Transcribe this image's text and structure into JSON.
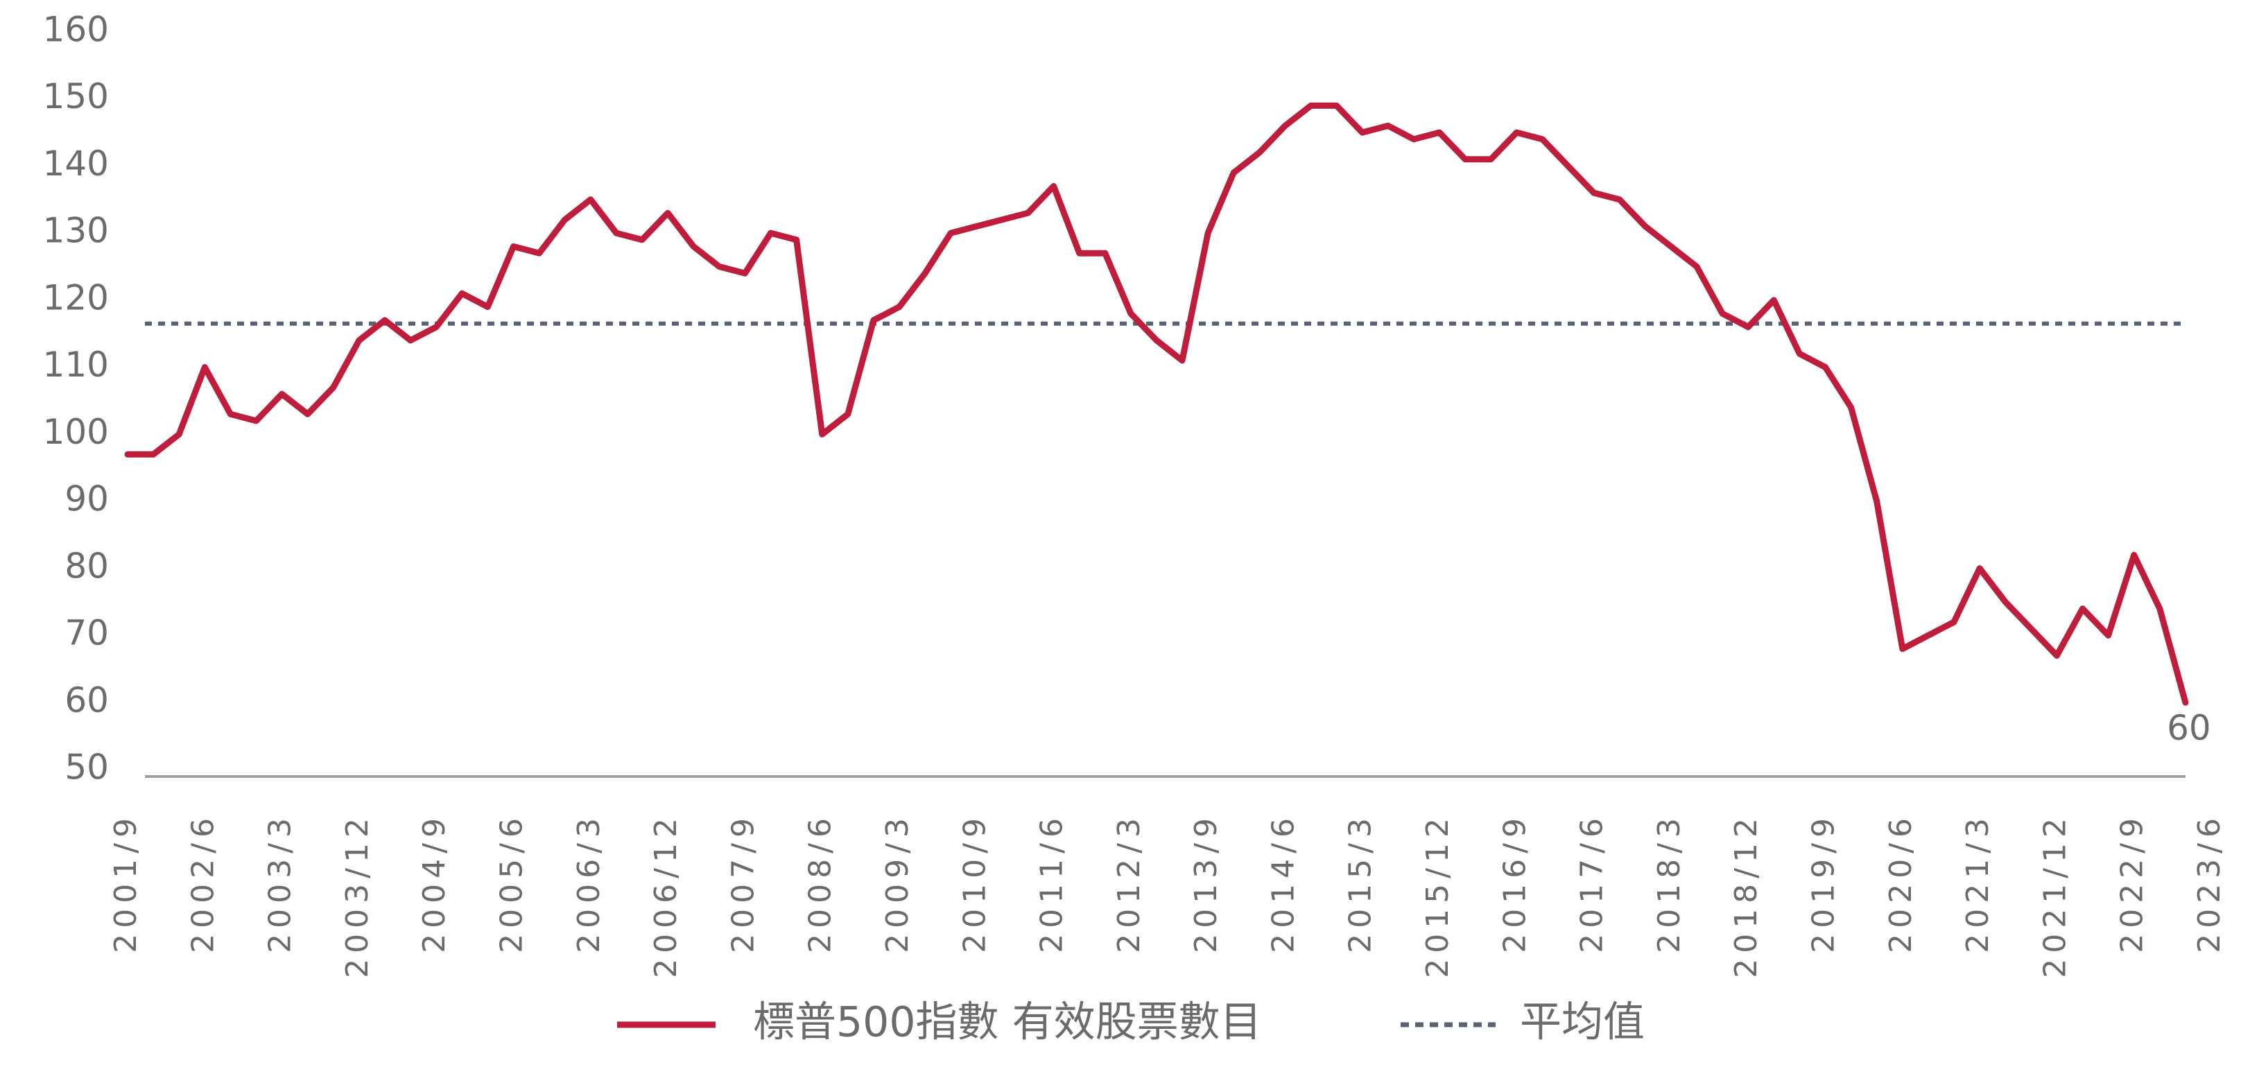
{
  "chart_data": {
    "type": "line",
    "categories": [
      "2001/9",
      null,
      null,
      "2002/6",
      null,
      null,
      "2003/3",
      null,
      null,
      "2003/12",
      null,
      null,
      "2004/9",
      null,
      null,
      "2005/6",
      null,
      null,
      "2006/3",
      null,
      null,
      "2006/12",
      null,
      null,
      "2007/9",
      null,
      null,
      "2008/6",
      null,
      null,
      "2009/3",
      null,
      null,
      "2010/9",
      null,
      null,
      "2011/6",
      null,
      null,
      "2012/3",
      null,
      null,
      "2013/9",
      null,
      null,
      "2014/6",
      null,
      null,
      "2015/3",
      null,
      null,
      "2015/12",
      null,
      null,
      "2016/9",
      null,
      null,
      "2017/6",
      null,
      null,
      "2018/3",
      null,
      null,
      "2018/12",
      null,
      null,
      "2019/9",
      null,
      null,
      "2020/6",
      null,
      null,
      "2021/3",
      null,
      null,
      "2021/12",
      null,
      null,
      "2022/9",
      null,
      null,
      "2023/6"
    ],
    "series": [
      {
        "name": "標普500指數 有效股票數目",
        "color": "#be1e3c",
        "values": [
          97,
          97,
          100,
          110,
          103,
          102,
          106,
          103,
          107,
          114,
          117,
          114,
          116,
          121,
          119,
          128,
          127,
          132,
          135,
          130,
          129,
          133,
          128,
          125,
          124,
          130,
          129,
          100,
          103,
          117,
          119,
          124,
          130,
          131,
          132,
          133,
          137,
          127,
          127,
          118,
          114,
          111,
          130,
          139,
          142,
          146,
          149,
          149,
          145,
          146,
          144,
          145,
          141,
          141,
          145,
          144,
          140,
          136,
          135,
          131,
          128,
          125,
          118,
          116,
          120,
          112,
          110,
          104,
          90,
          68,
          70,
          72,
          80,
          75,
          71,
          67,
          74,
          70,
          82,
          74,
          60,
          null
        ]
      }
    ],
    "average": {
      "name": "平均值",
      "value": 116.5,
      "color": "#5a6470"
    },
    "ylim": [
      50,
      160
    ],
    "yticks": [
      50,
      60,
      70,
      80,
      90,
      100,
      110,
      120,
      130,
      140,
      150,
      160
    ],
    "axis_color": "#a0a0a0"
  }
}
